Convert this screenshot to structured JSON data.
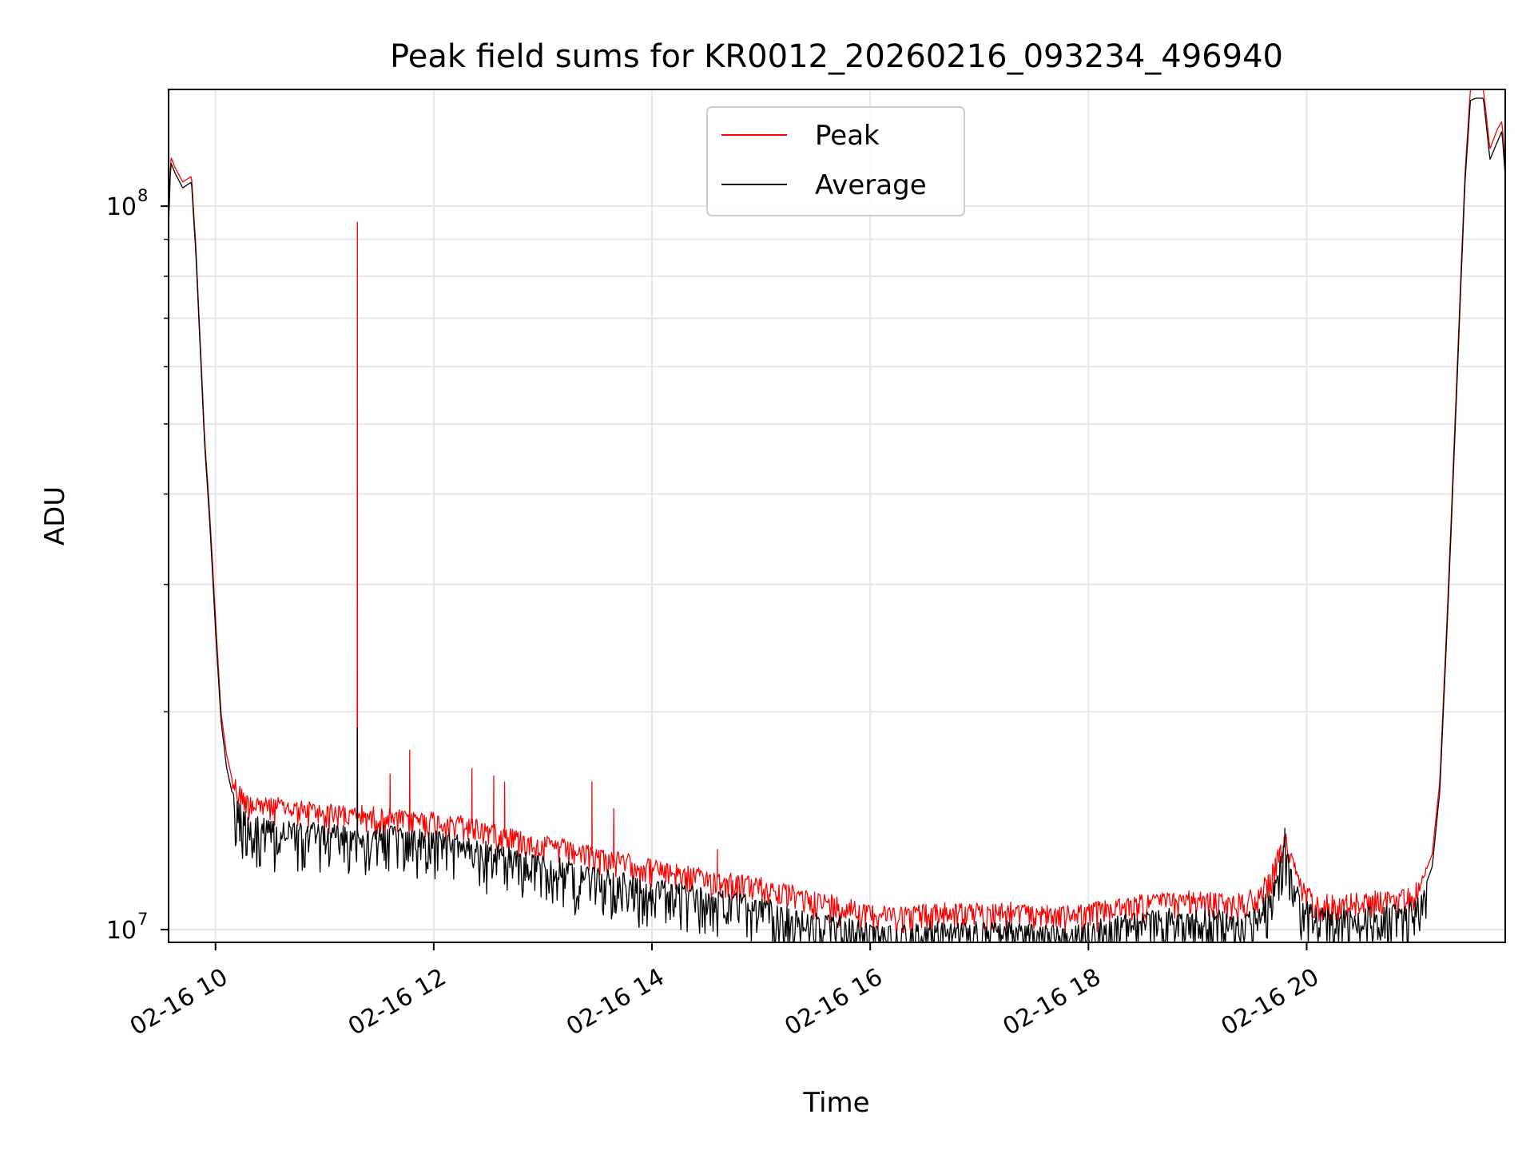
{
  "chart_data": {
    "type": "line",
    "title": "Peak field sums for KR0012_20260216_093234_496940",
    "xlabel": "Time",
    "ylabel": "ADU",
    "yscale": "log",
    "grid": true,
    "legend_position": "top-center",
    "xlim": [
      9.57,
      21.82
    ],
    "ylim": [
      9600000,
      145000000
    ],
    "x_unit": "hours since 2026-02-16 00:00",
    "x_ticks": [
      {
        "value": 10,
        "label": "02-16 10"
      },
      {
        "value": 12,
        "label": "02-16 12"
      },
      {
        "value": 14,
        "label": "02-16 14"
      },
      {
        "value": 16,
        "label": "02-16 16"
      },
      {
        "value": 18,
        "label": "02-16 18"
      },
      {
        "value": 20,
        "label": "02-16 20"
      }
    ],
    "y_ticks": [
      {
        "value": 10000000,
        "label": "10",
        "exponent": "7"
      },
      {
        "value": 100000000,
        "label": "10",
        "exponent": "8"
      }
    ],
    "series": [
      {
        "name": "Peak",
        "color": "#ff0000",
        "x": [
          9.57,
          9.59,
          9.63,
          9.7,
          9.78,
          9.82,
          9.9,
          9.95,
          10.0,
          10.05,
          10.1,
          10.15,
          10.2,
          10.3,
          10.5,
          10.8,
          11.0,
          11.2,
          11.5,
          11.8,
          12.0,
          12.2,
          12.5,
          12.8,
          13.0,
          13.3,
          13.6,
          14.0,
          14.5,
          14.9,
          15.2,
          15.5,
          15.8,
          16.0,
          16.3,
          16.6,
          17.0,
          17.4,
          17.8,
          18.0,
          18.3,
          18.7,
          19.0,
          19.3,
          19.55,
          19.7,
          19.8,
          19.88,
          19.95,
          20.05,
          20.15,
          20.3,
          20.6,
          20.9,
          21.05,
          21.15,
          21.22,
          21.3,
          21.38,
          21.45,
          21.5,
          21.55,
          21.62,
          21.68,
          21.75,
          21.79,
          21.82
        ],
        "y": [
          96000000,
          117000000,
          113000000,
          108000000,
          110000000,
          88000000,
          48000000,
          37000000,
          27000000,
          20000000,
          17500000,
          16200000,
          15700000,
          15200000,
          15000000,
          14800000,
          14700000,
          14600000,
          14500000,
          14400000,
          14300000,
          14200000,
          13900000,
          13500000,
          13300000,
          13000000,
          12700000,
          12300000,
          11900000,
          11700000,
          11400000,
          11100000,
          10900000,
          10700000,
          10600000,
          10700000,
          10700000,
          10700000,
          10600000,
          10700000,
          10900000,
          11100000,
          11100000,
          11000000,
          11200000,
          12200000,
          13600000,
          12300000,
          11500000,
          11200000,
          11000000,
          11000000,
          11100000,
          11200000,
          11600000,
          12700000,
          16000000,
          30000000,
          60000000,
          110000000,
          145000000,
          145000000,
          145000000,
          120000000,
          128000000,
          131000000,
          113000000
        ],
        "spikes": [
          {
            "x": 11.3,
            "y": 95000000
          },
          {
            "x": 11.78,
            "y": 17700000
          },
          {
            "x": 11.6,
            "y": 16400000
          },
          {
            "x": 12.35,
            "y": 16700000
          },
          {
            "x": 12.55,
            "y": 16300000
          },
          {
            "x": 12.65,
            "y": 16000000
          },
          {
            "x": 13.45,
            "y": 16000000
          },
          {
            "x": 13.65,
            "y": 14700000
          },
          {
            "x": 14.6,
            "y": 12900000
          }
        ]
      },
      {
        "name": "Average",
        "color": "#000000",
        "x": [
          9.57,
          9.59,
          9.63,
          9.7,
          9.78,
          9.82,
          9.9,
          9.95,
          10.0,
          10.05,
          10.1,
          10.15,
          10.2,
          10.3,
          10.5,
          10.8,
          11.0,
          11.2,
          11.5,
          11.8,
          12.0,
          12.2,
          12.5,
          12.8,
          13.0,
          13.3,
          13.6,
          14.0,
          14.5,
          14.9,
          15.2,
          15.5,
          15.8,
          16.0,
          16.3,
          16.6,
          17.0,
          17.4,
          17.8,
          18.0,
          18.3,
          18.7,
          19.0,
          19.3,
          19.55,
          19.7,
          19.8,
          19.88,
          19.95,
          20.05,
          20.15,
          20.3,
          20.6,
          20.9,
          21.05,
          21.15,
          21.22,
          21.3,
          21.38,
          21.45,
          21.5,
          21.55,
          21.62,
          21.68,
          21.75,
          21.79,
          21.82
        ],
        "y": [
          94000000,
          115000000,
          111000000,
          106000000,
          108000000,
          86000000,
          47000000,
          36000000,
          26000000,
          19500000,
          16800000,
          15500000,
          14800000,
          14200000,
          14000000,
          13900000,
          13800000,
          13700000,
          13700000,
          13600000,
          13500000,
          13300000,
          13000000,
          12700000,
          12500000,
          12200000,
          11900000,
          11600000,
          11200000,
          11000000,
          10700000,
          10400000,
          10200000,
          10100000,
          10000000,
          10100000,
          10100000,
          10100000,
          10000000,
          10100000,
          10300000,
          10500000,
          10500000,
          10400000,
          10600000,
          11600000,
          13000000,
          11700000,
          11000000,
          10700000,
          10500000,
          10500000,
          10600000,
          10700000,
          11100000,
          12200000,
          15500000,
          29000000,
          58000000,
          107000000,
          140000000,
          141000000,
          141000000,
          116000000,
          123000000,
          127000000,
          110000000
        ],
        "spikes": [
          {
            "x": 11.3,
            "y": 19000000
          },
          {
            "x": 19.8,
            "y": 13800000
          }
        ]
      }
    ]
  }
}
